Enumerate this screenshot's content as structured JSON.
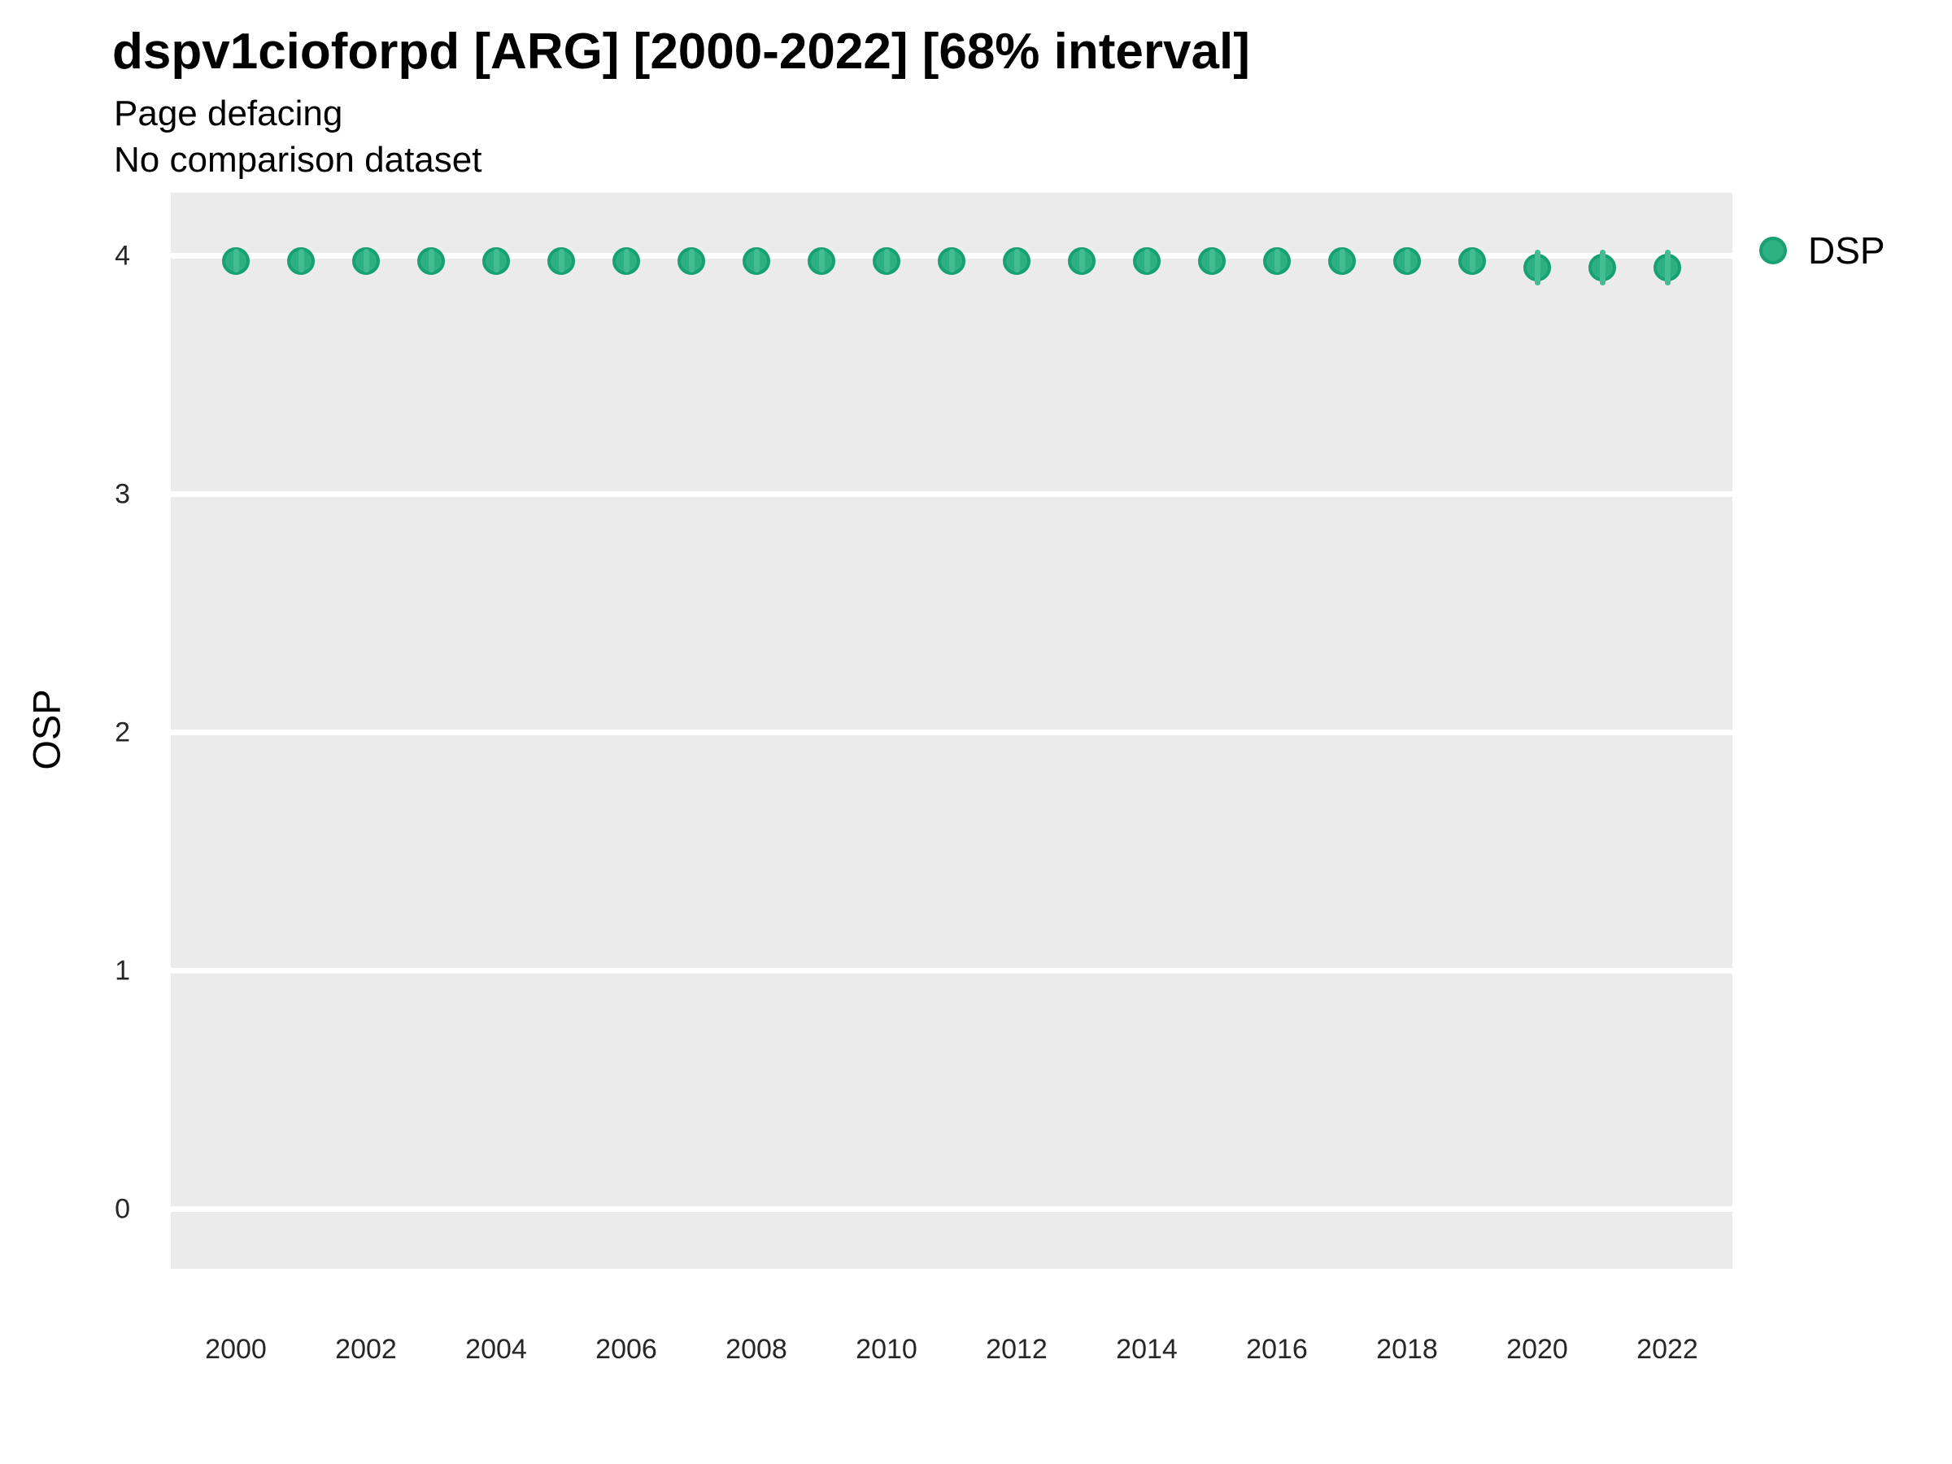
{
  "header": {
    "title": "dspv1cioforpd [ARG] [2000-2022] [68% interval]",
    "subtitle_line1": "Page defacing",
    "subtitle_line2": "No comparison dataset"
  },
  "y_axis": {
    "label": "OSP",
    "ticks": [
      0,
      1,
      2,
      3,
      4
    ],
    "range": [
      -0.25,
      4.265
    ]
  },
  "x_axis": {
    "label": "",
    "ticks": [
      2000,
      2002,
      2004,
      2006,
      2008,
      2010,
      2012,
      2014,
      2016,
      2018,
      2020,
      2022
    ],
    "range": [
      1999,
      2023
    ]
  },
  "legend": {
    "position": "right",
    "items": [
      {
        "label": "DSP",
        "color": "#2DB183"
      }
    ]
  },
  "colors": {
    "panel_background": "#EBEBEB",
    "gridline": "#FFFFFF",
    "point_fill": "#2DB183",
    "point_stroke": "#17A173",
    "interval_line": "#45BC92",
    "text": "#000000"
  },
  "chart_data": {
    "type": "scatter",
    "title": "dspv1cioforpd [ARG] [2000-2022] [68% interval]",
    "subtitle": [
      "Page defacing",
      "No comparison dataset"
    ],
    "xlabel": "",
    "ylabel": "OSP",
    "ylim": [
      -0.25,
      4.265
    ],
    "xlim": [
      1999,
      2023
    ],
    "grid": "horizontal-major-only",
    "legend_position": "right",
    "interval": "68%",
    "series": [
      {
        "name": "DSP",
        "x": [
          2000,
          2001,
          2002,
          2003,
          2004,
          2005,
          2006,
          2007,
          2008,
          2009,
          2010,
          2011,
          2012,
          2013,
          2014,
          2015,
          2016,
          2017,
          2018,
          2019,
          2020,
          2021,
          2022
        ],
        "y": [
          3.98,
          3.98,
          3.98,
          3.98,
          3.98,
          3.98,
          3.98,
          3.98,
          3.98,
          3.98,
          3.98,
          3.98,
          3.98,
          3.98,
          3.98,
          3.98,
          3.98,
          3.98,
          3.98,
          3.98,
          3.95,
          3.95,
          3.95
        ],
        "y_lo": [
          3.93,
          3.93,
          3.93,
          3.93,
          3.93,
          3.93,
          3.93,
          3.93,
          3.93,
          3.93,
          3.93,
          3.93,
          3.93,
          3.93,
          3.93,
          3.93,
          3.93,
          3.93,
          3.93,
          3.93,
          3.875,
          3.875,
          3.875
        ],
        "y_hi": [
          4.03,
          4.03,
          4.03,
          4.03,
          4.03,
          4.03,
          4.03,
          4.03,
          4.03,
          4.03,
          4.03,
          4.03,
          4.03,
          4.03,
          4.03,
          4.03,
          4.03,
          4.03,
          4.03,
          4.03,
          4.025,
          4.025,
          4.025
        ]
      }
    ]
  }
}
